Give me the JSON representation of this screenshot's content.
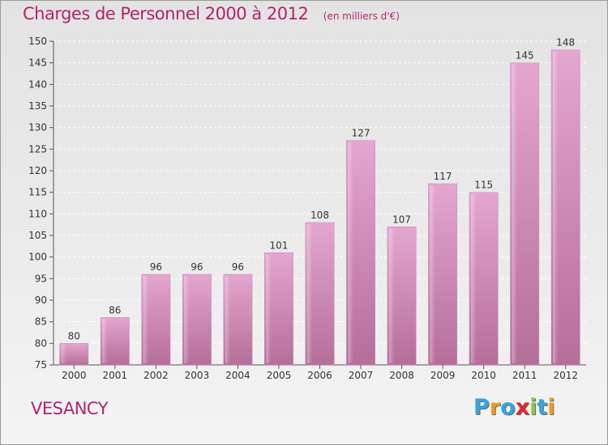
{
  "header": {
    "title": "Charges de Personnel 2000 à 2012",
    "subtitle": "(en milliers d'€)"
  },
  "footer": {
    "commune": "VESANCY",
    "logo": {
      "text": "Proxiti",
      "letters": [
        {
          "char": "P",
          "color": "#3aa3d9"
        },
        {
          "char": "r",
          "color": "#f29a1f"
        },
        {
          "char": "o",
          "color": "#3aa3d9"
        },
        {
          "char": "x",
          "color": "#e8262a"
        },
        {
          "char": "i",
          "color": "#8cc63e"
        },
        {
          "char": "t",
          "color": "#3aa3d9"
        },
        {
          "char": "i",
          "color": "#f29a1f"
        }
      ]
    }
  },
  "colors": {
    "bar_top": "#e4a6cf",
    "bar_bottom": "#b56e9a",
    "title": "#b2246e",
    "axis": "#555555"
  },
  "chart_data": {
    "type": "bar",
    "title": "Charges de Personnel 2000 à 2012",
    "subtitle": "(en milliers d'€)",
    "categories": [
      "2000",
      "2001",
      "2002",
      "2003",
      "2004",
      "2005",
      "2006",
      "2007",
      "2008",
      "2009",
      "2010",
      "2011",
      "2012"
    ],
    "values": [
      80,
      86,
      96,
      96,
      96,
      101,
      108,
      127,
      107,
      117,
      115,
      145,
      148
    ],
    "ylim": [
      75,
      150
    ],
    "yticks": [
      75,
      80,
      85,
      90,
      95,
      100,
      105,
      110,
      115,
      120,
      125,
      130,
      135,
      140,
      145,
      150
    ],
    "grid": true,
    "legend": "none"
  }
}
